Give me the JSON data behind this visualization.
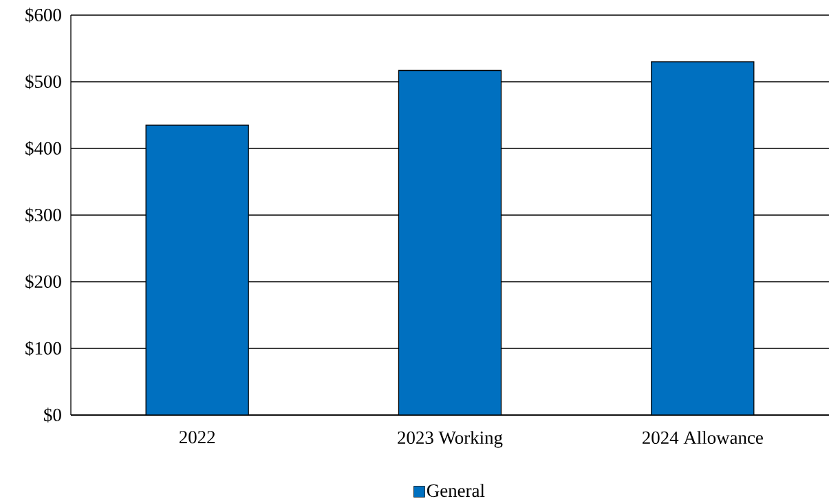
{
  "chart_data": {
    "type": "bar",
    "categories": [
      "2022",
      "2023 Working",
      "2024 Allowance"
    ],
    "series": [
      {
        "name": "General",
        "color": "#0070c0",
        "values": [
          435,
          517,
          530
        ]
      }
    ],
    "ylim": [
      0,
      600
    ],
    "yticks": [
      {
        "value": 0,
        "label": "$0"
      },
      {
        "value": 100,
        "label": "$100"
      },
      {
        "value": 200,
        "label": "$200"
      },
      {
        "value": 300,
        "label": "$300"
      },
      {
        "value": 400,
        "label": "$400"
      },
      {
        "value": 500,
        "label": "$500"
      },
      {
        "value": 600,
        "label": "$600"
      }
    ],
    "grid": "y",
    "legend": "bottom"
  }
}
